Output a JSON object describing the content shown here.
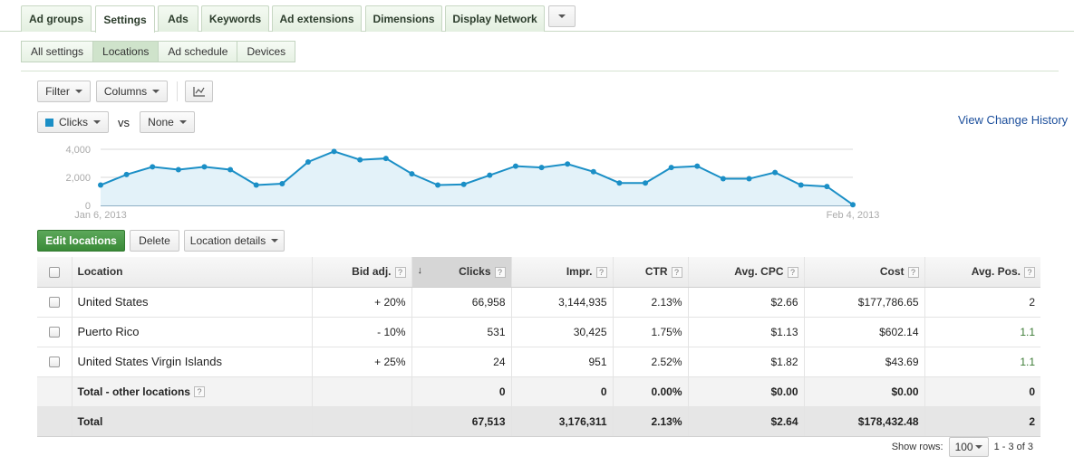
{
  "tabs": [
    "Ad groups",
    "Settings",
    "Ads",
    "Keywords",
    "Ad extensions",
    "Dimensions",
    "Display Network"
  ],
  "active_tab": "Settings",
  "subtabs": [
    "All settings",
    "Locations",
    "Ad schedule",
    "Devices"
  ],
  "active_subtab": "Locations",
  "toolbar": {
    "filter": "Filter",
    "columns": "Columns",
    "metric1": "Clicks",
    "vs": "vs",
    "metric2": "None"
  },
  "view_change_history": "View Change History",
  "colors": {
    "accent": "#1b8fc6",
    "fill": "#e3f2f9",
    "edit_button": "#4a9a48",
    "link": "#1c4f9c"
  },
  "chart_data": {
    "type": "area",
    "y_ticks": [
      "4,000",
      "2,000",
      "0"
    ],
    "ylim": [
      0,
      4000
    ],
    "x_start_label": "Jan 6, 2013",
    "x_end_label": "Feb 4, 2013",
    "x": [
      "2013-01-06",
      "2013-01-07",
      "2013-01-08",
      "2013-01-09",
      "2013-01-10",
      "2013-01-11",
      "2013-01-12",
      "2013-01-13",
      "2013-01-14",
      "2013-01-15",
      "2013-01-16",
      "2013-01-17",
      "2013-01-18",
      "2013-01-19",
      "2013-01-20",
      "2013-01-21",
      "2013-01-22",
      "2013-01-23",
      "2013-01-24",
      "2013-01-25",
      "2013-01-26",
      "2013-01-27",
      "2013-01-28",
      "2013-01-29",
      "2013-01-30",
      "2013-01-31",
      "2013-02-01",
      "2013-02-02",
      "2013-02-03",
      "2013-02-04"
    ],
    "values": [
      1450,
      2200,
      2750,
      2550,
      2750,
      2550,
      1450,
      1550,
      3100,
      3850,
      3250,
      3350,
      2250,
      1450,
      1500,
      2150,
      2800,
      2700,
      2950,
      2400,
      1600,
      1600,
      2700,
      2800,
      1900,
      1900,
      2350,
      1450,
      1350,
      50
    ],
    "series": [
      {
        "name": "Clicks",
        "color": "#1b8fc6"
      }
    ],
    "grid": true
  },
  "actions": {
    "edit": "Edit locations",
    "delete": "Delete",
    "details": "Location details"
  },
  "table": {
    "headers": {
      "location": "Location",
      "bid": "Bid adj.",
      "clicks": "Clicks",
      "impr": "Impr.",
      "ctr": "CTR",
      "cpc": "Avg. CPC",
      "cost": "Cost",
      "pos": "Avg. Pos."
    },
    "rows": [
      {
        "location": "United States",
        "bid": "+ 20%",
        "clicks": "66,958",
        "impr": "3,144,935",
        "ctr": "2.13%",
        "cpc": "$2.66",
        "cost": "$177,786.65",
        "pos": "2"
      },
      {
        "location": "Puerto Rico",
        "bid": "- 10%",
        "clicks": "531",
        "impr": "30,425",
        "ctr": "1.75%",
        "cpc": "$1.13",
        "cost": "$602.14",
        "pos": "1.1"
      },
      {
        "location": "United States Virgin Islands",
        "bid": "+ 25%",
        "clicks": "24",
        "impr": "951",
        "ctr": "2.52%",
        "cpc": "$1.82",
        "cost": "$43.69",
        "pos": "1.1"
      }
    ],
    "other": {
      "location": "Total - other locations",
      "clicks": "0",
      "impr": "0",
      "ctr": "0.00%",
      "cpc": "$0.00",
      "cost": "$0.00",
      "pos": "0"
    },
    "total": {
      "location": "Total",
      "clicks": "67,513",
      "impr": "3,176,311",
      "ctr": "2.13%",
      "cpc": "$2.64",
      "cost": "$178,432.48",
      "pos": "2"
    }
  },
  "footer": {
    "show_rows": "Show rows:",
    "rows_value": "100",
    "range": "1 - 3 of 3"
  }
}
